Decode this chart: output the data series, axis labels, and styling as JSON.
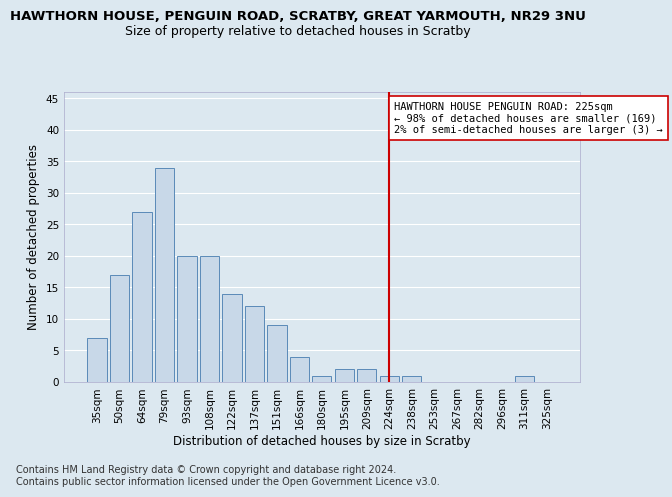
{
  "title": "HAWTHORN HOUSE, PENGUIN ROAD, SCRATBY, GREAT YARMOUTH, NR29 3NU",
  "subtitle": "Size of property relative to detached houses in Scratby",
  "xlabel": "Distribution of detached houses by size in Scratby",
  "ylabel": "Number of detached properties",
  "bar_labels": [
    "35sqm",
    "50sqm",
    "64sqm",
    "79sqm",
    "93sqm",
    "108sqm",
    "122sqm",
    "137sqm",
    "151sqm",
    "166sqm",
    "180sqm",
    "195sqm",
    "209sqm",
    "224sqm",
    "238sqm",
    "253sqm",
    "267sqm",
    "282sqm",
    "296sqm",
    "311sqm",
    "325sqm"
  ],
  "bar_values": [
    7,
    17,
    27,
    34,
    20,
    20,
    14,
    12,
    9,
    4,
    1,
    2,
    2,
    1,
    1,
    0,
    0,
    0,
    0,
    1,
    0
  ],
  "bar_color": "#c8d8e8",
  "bar_edge_color": "#5a8ab8",
  "background_color": "#dce8f0",
  "plot_bg_color": "#dce8f0",
  "grid_color": "#ffffff",
  "ylim": [
    0,
    46
  ],
  "yticks": [
    0,
    5,
    10,
    15,
    20,
    25,
    30,
    35,
    40,
    45
  ],
  "vline_x_index": 13,
  "vline_color": "#cc0000",
  "annotation_text": "HAWTHORN HOUSE PENGUIN ROAD: 225sqm\n← 98% of detached houses are smaller (169)\n2% of semi-detached houses are larger (3) →",
  "annotation_box_color": "#ffffff",
  "annotation_box_edge": "#cc0000",
  "footer_line1": "Contains HM Land Registry data © Crown copyright and database right 2024.",
  "footer_line2": "Contains public sector information licensed under the Open Government Licence v3.0.",
  "title_fontsize": 9.5,
  "subtitle_fontsize": 9,
  "xlabel_fontsize": 8.5,
  "ylabel_fontsize": 8.5,
  "tick_fontsize": 7.5,
  "annotation_fontsize": 7.5,
  "footer_fontsize": 7
}
